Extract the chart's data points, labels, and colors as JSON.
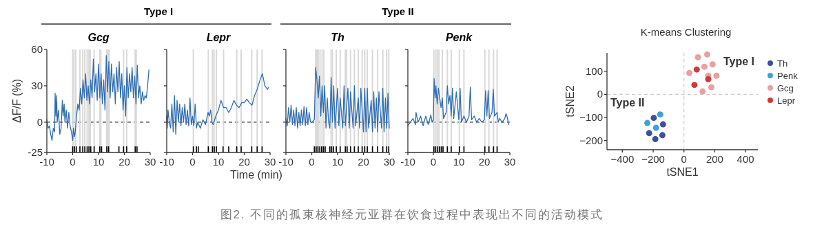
{
  "chart_data": [
    {
      "type": "line",
      "title": "Gcg",
      "ylabel": "ΔF/F (%)",
      "xlim": [
        -10,
        30
      ],
      "xticks": [
        -10,
        0,
        10,
        20,
        30
      ],
      "ylim": [
        -25,
        60
      ],
      "yticks": [
        -25,
        0,
        30,
        60
      ],
      "annotations": [
        "Type I",
        "图2. 不同的孤束核神经元亚群在饮食过程中表现出不同的活动模式"
      ],
      "ref_lines": [
        {
          "axis": "y",
          "value": 0,
          "color": "#333333",
          "line_style": "dashed"
        },
        {
          "axis": "x",
          "value": 0,
          "color": "#d9d9d9"
        },
        {
          "axis": "x",
          "value": 0.5,
          "color": "#d9d9d9"
        },
        {
          "axis": "x",
          "value": 1.2,
          "color": "#d9d9d9"
        },
        {
          "axis": "x",
          "value": 2.8,
          "color": "#d9d9d9"
        },
        {
          "axis": "x",
          "value": 3.9,
          "color": "#d9d9d9"
        },
        {
          "axis": "x",
          "value": 4.7,
          "color": "#d9d9d9"
        },
        {
          "axis": "x",
          "value": 5.6,
          "color": "#d9d9d9"
        },
        {
          "axis": "x",
          "value": 6.3,
          "color": "#d9d9d9"
        },
        {
          "axis": "x",
          "value": 6.8,
          "color": "#d9d9d9"
        },
        {
          "axis": "x",
          "value": 8.3,
          "color": "#d9d9d9"
        },
        {
          "axis": "x",
          "value": 10.5,
          "color": "#d9d9d9"
        },
        {
          "axis": "x",
          "value": 10.9,
          "color": "#d9d9d9"
        },
        {
          "axis": "x",
          "value": 13.2,
          "color": "#d9d9d9"
        },
        {
          "axis": "x",
          "value": 13.7,
          "color": "#d9d9d9"
        },
        {
          "axis": "x",
          "value": 14.1,
          "color": "#d9d9d9"
        },
        {
          "axis": "x",
          "value": 19.7,
          "color": "#d9d9d9"
        },
        {
          "axis": "x",
          "value": 20.9,
          "color": "#d9d9d9"
        },
        {
          "axis": "x",
          "value": 24.2,
          "color": "#d9d9d9"
        },
        {
          "axis": "x",
          "value": 24.6,
          "color": "#d9d9d9"
        }
      ],
      "series": [
        {
          "color": "#2e6db4",
          "x": [
            -10,
            -9.5,
            -9,
            -8.5,
            -8,
            -7.5,
            -7,
            -6.8,
            -6.5,
            -6.2,
            -6,
            -5.5,
            -5,
            -4.5,
            -4,
            -3.7,
            -3.3,
            -3,
            -2.5,
            -2,
            -1.5,
            -1,
            -0.5,
            0,
            0.3,
            0.7,
            1,
            1.5,
            2,
            2.5,
            3,
            3.5,
            4,
            4.5,
            5,
            5.5,
            6,
            6.5,
            7,
            7.5,
            8,
            8.5,
            9,
            9.5,
            10,
            10.5,
            11,
            11.5,
            12,
            12.5,
            13,
            13.5,
            14,
            14.5,
            15,
            15.5,
            16,
            16.5,
            17,
            17.5,
            18,
            18.5,
            19,
            19.5,
            20,
            20.5,
            21,
            21.5,
            22,
            22.5,
            23,
            23.5,
            24,
            24.5,
            25,
            25.5,
            26,
            26.5,
            27,
            27.5,
            28,
            28.5,
            29,
            29.5
          ],
          "values": [
            2,
            -5,
            -3,
            -10,
            -15,
            -5,
            -8,
            24,
            5,
            22,
            0,
            10,
            -10,
            -5,
            18,
            5,
            15,
            0,
            10,
            -5,
            8,
            -3,
            -8,
            -15,
            -5,
            -12,
            -8,
            5,
            15,
            10,
            28,
            15,
            35,
            20,
            40,
            18,
            30,
            15,
            35,
            20,
            52,
            25,
            40,
            18,
            48,
            20,
            40,
            15,
            35,
            10,
            55,
            25,
            50,
            20,
            48,
            25,
            40,
            15,
            45,
            25,
            50,
            20,
            40,
            10,
            30,
            5,
            45,
            20,
            40,
            25,
            45,
            20,
            38,
            15,
            47,
            20,
            30,
            15,
            25,
            18,
            22,
            20,
            30,
            43
          ]
        },
        {
          "type": "bar",
          "color": "#000000",
          "x": [
            0,
            0.7,
            1.4,
            2.8,
            3.9,
            4.7,
            5.6,
            6.3,
            7,
            8.3,
            10.5,
            11.2,
            13.2,
            13.9,
            17.9,
            19.7,
            20.9,
            24.2,
            24.9
          ],
          "base": [
            -25,
            -25,
            -25,
            -25,
            -25,
            -25,
            -25,
            -25,
            -25,
            -25,
            -25,
            -25,
            -25,
            -25,
            -25,
            -25,
            -25,
            -25,
            -25
          ],
          "values": [
            5,
            5,
            5,
            5,
            5,
            5,
            5,
            5,
            5,
            5,
            5,
            5,
            5,
            5,
            5,
            5,
            5,
            5,
            5
          ]
        }
      ]
    },
    {
      "type": "line",
      "title": "Lepr",
      "xlabel": "Time (min)",
      "xlim": [
        -10,
        30
      ],
      "xticks": [
        -10,
        0,
        10,
        20,
        30
      ],
      "ylim": [
        -25,
        60
      ],
      "yticks": [
        -25,
        0,
        30,
        60
      ],
      "tick_labels": "x",
      "ref_lines": [
        {
          "axis": "y",
          "value": 0,
          "color": "#333333",
          "line_style": "dashed"
        },
        {
          "axis": "x",
          "value": 0.3,
          "color": "#d9d9d9"
        },
        {
          "axis": "x",
          "value": 6.1,
          "color": "#d9d9d9"
        },
        {
          "axis": "x",
          "value": 7.7,
          "color": "#d9d9d9"
        },
        {
          "axis": "x",
          "value": 8.3,
          "color": "#d9d9d9"
        },
        {
          "axis": "x",
          "value": 9.2,
          "color": "#d9d9d9"
        },
        {
          "axis": "x",
          "value": 12,
          "color": "#d9d9d9"
        },
        {
          "axis": "x",
          "value": 17.1,
          "color": "#d9d9d9"
        },
        {
          "axis": "x",
          "value": 18.8,
          "color": "#d9d9d9"
        },
        {
          "axis": "x",
          "value": 22.9,
          "color": "#d9d9d9"
        },
        {
          "axis": "x",
          "value": 25,
          "color": "#d9d9d9"
        },
        {
          "axis": "x",
          "value": 26.9,
          "color": "#d9d9d9"
        }
      ],
      "series": [
        {
          "color": "#2e6db4",
          "x": [
            -10,
            -9.8,
            -9.5,
            -9,
            -8.5,
            -8,
            -7.5,
            -7,
            -6.5,
            -6,
            -5.5,
            -5,
            -4.5,
            -4,
            -3.5,
            -3,
            -2.5,
            -2,
            -1.5,
            -1,
            -0.5,
            0,
            0.5,
            1,
            1.5,
            2,
            3,
            4,
            5,
            6,
            6.5,
            7,
            7.5,
            8,
            9,
            10,
            11,
            12,
            13,
            14,
            15,
            16,
            17,
            18,
            19,
            20,
            21,
            22,
            23,
            24,
            25,
            26,
            27,
            28,
            29,
            29.5
          ],
          "values": [
            5,
            -5,
            10,
            0,
            -5,
            15,
            -8,
            22,
            -10,
            18,
            0,
            15,
            -3,
            12,
            0,
            15,
            -2,
            10,
            -3,
            20,
            -2,
            5,
            -3,
            15,
            -5,
            0,
            -5,
            2,
            -2,
            8,
            5,
            10,
            0,
            -2,
            5,
            10,
            18,
            12,
            12,
            8,
            12,
            18,
            14,
            12,
            16,
            16,
            19,
            16,
            14,
            22,
            27,
            34,
            40,
            30,
            27,
            29
          ]
        },
        {
          "type": "bar",
          "color": "#000000",
          "x": [
            0.3,
            1.5,
            2.2,
            6.1,
            7.7,
            8.4,
            9.2,
            11.8,
            14,
            17.1,
            18.8,
            22.9,
            25,
            26.9
          ],
          "base": [
            -25,
            -25,
            -25,
            -25,
            -25,
            -25,
            -25,
            -25,
            -25,
            -25,
            -25,
            -25,
            -25,
            -25
          ],
          "values": [
            5,
            5,
            5,
            5,
            5,
            5,
            5,
            5,
            5,
            5,
            5,
            5,
            5,
            5
          ]
        }
      ]
    },
    {
      "type": "line",
      "title": "Th",
      "xlim": [
        -10,
        30
      ],
      "xticks": [
        -10,
        0,
        10,
        20,
        30
      ],
      "ylim": [
        -25,
        60
      ],
      "yticks": [
        -25,
        0,
        30,
        60
      ],
      "tick_labels": "x",
      "annotations": [
        "Type II"
      ],
      "ref_lines": [
        {
          "axis": "y",
          "value": 0,
          "color": "#333333",
          "line_style": "dashed"
        },
        {
          "axis": "x",
          "value": 1.5,
          "color": "#d9d9d9"
        },
        {
          "axis": "x",
          "value": 2,
          "color": "#d9d9d9"
        },
        {
          "axis": "x",
          "value": 2.5,
          "color": "#d9d9d9"
        },
        {
          "axis": "x",
          "value": 3.2,
          "color": "#d9d9d9"
        },
        {
          "axis": "x",
          "value": 4,
          "color": "#d9d9d9"
        },
        {
          "axis": "x",
          "value": 4.7,
          "color": "#d9d9d9"
        },
        {
          "axis": "x",
          "value": 7.5,
          "color": "#d9d9d9"
        },
        {
          "axis": "x",
          "value": 8,
          "color": "#d9d9d9"
        },
        {
          "axis": "x",
          "value": 9.5,
          "color": "#d9d9d9"
        },
        {
          "axis": "x",
          "value": 11,
          "color": "#d9d9d9"
        },
        {
          "axis": "x",
          "value": 13,
          "color": "#d9d9d9"
        },
        {
          "axis": "x",
          "value": 13.5,
          "color": "#d9d9d9"
        },
        {
          "axis": "x",
          "value": 15,
          "color": "#d9d9d9"
        },
        {
          "axis": "x",
          "value": 16.5,
          "color": "#d9d9d9"
        },
        {
          "axis": "x",
          "value": 18,
          "color": "#d9d9d9"
        },
        {
          "axis": "x",
          "value": 19.5,
          "color": "#d9d9d9"
        },
        {
          "axis": "x",
          "value": 20.5,
          "color": "#d9d9d9"
        },
        {
          "axis": "x",
          "value": 21.5,
          "color": "#d9d9d9"
        },
        {
          "axis": "x",
          "value": 23.5,
          "color": "#d9d9d9"
        },
        {
          "axis": "x",
          "value": 25.5,
          "color": "#d9d9d9"
        },
        {
          "axis": "x",
          "value": 27.5,
          "color": "#d9d9d9"
        },
        {
          "axis": "x",
          "value": 29,
          "color": "#d9d9d9"
        },
        {
          "axis": "x",
          "value": 29.8,
          "color": "#d9d9d9"
        }
      ],
      "series": [
        {
          "color": "#2e6db4",
          "x": [
            -10,
            -9.5,
            -9,
            -8.5,
            -8,
            -7.5,
            -7,
            -6.5,
            -6,
            -5.5,
            -5,
            -4.5,
            -4,
            -3.5,
            -3,
            -2.5,
            -2,
            -1.5,
            -1,
            -0.5,
            0,
            1,
            1.5,
            2,
            2.5,
            3,
            3.5,
            4,
            4.5,
            5,
            5.5,
            6,
            6.5,
            7,
            7.5,
            8,
            8.5,
            9,
            10,
            10.5,
            11,
            12,
            12.5,
            13,
            14,
            14.5,
            15,
            16,
            16.5,
            17,
            18,
            18.5,
            19,
            20,
            20.5,
            21,
            21.5,
            22,
            23,
            23.5,
            24,
            24.5,
            25,
            25.5,
            26,
            27,
            27.5,
            28,
            28.5,
            29,
            29.5,
            30
          ],
          "values": [
            3,
            -3,
            12,
            0,
            14,
            -2,
            10,
            -3,
            12,
            -5,
            8,
            -3,
            10,
            -2,
            13,
            -3,
            12,
            -2,
            8,
            0,
            0,
            2,
            45,
            35,
            20,
            38,
            5,
            30,
            8,
            30,
            -5,
            20,
            0,
            -5,
            37,
            0,
            30,
            -5,
            28,
            -3,
            20,
            -5,
            30,
            -3,
            28,
            -5,
            25,
            -5,
            30,
            -3,
            20,
            -5,
            28,
            -8,
            28,
            -8,
            28,
            -5,
            18,
            -8,
            25,
            -5,
            20,
            -8,
            25,
            -5,
            28,
            -8,
            20,
            -5,
            24,
            -5
          ]
        },
        {
          "type": "bar",
          "color": "#000000",
          "x": [
            1,
            1.7,
            2.4,
            3.1,
            3.8,
            4.5,
            5.2,
            7,
            7.7,
            8.4,
            9.5,
            11,
            13,
            13.7,
            15,
            16.5,
            18,
            19.5,
            20.5,
            21.5,
            23.5,
            25.5,
            27.5,
            29,
            29.8
          ],
          "base": [
            -25,
            -25,
            -25,
            -25,
            -25,
            -25,
            -25,
            -25,
            -25,
            -25,
            -25,
            -25,
            -25,
            -25,
            -25,
            -25,
            -25,
            -25,
            -25,
            -25,
            -25,
            -25,
            -25,
            -25,
            -25
          ],
          "values": [
            5,
            5,
            5,
            5,
            5,
            5,
            5,
            5,
            5,
            5,
            5,
            5,
            5,
            5,
            5,
            5,
            5,
            5,
            5,
            5,
            5,
            5,
            5,
            5,
            5
          ]
        }
      ]
    },
    {
      "type": "line",
      "title": "Penk",
      "xlim": [
        -10,
        30
      ],
      "xticks": [
        -10,
        0,
        10,
        20,
        30
      ],
      "ylim": [
        -25,
        60
      ],
      "yticks": [
        -25,
        0,
        30,
        60
      ],
      "tick_labels": "x",
      "ref_lines": [
        {
          "axis": "y",
          "value": 0,
          "color": "#333333",
          "line_style": "dashed"
        },
        {
          "axis": "x",
          "value": 0.2,
          "color": "#d9d9d9"
        },
        {
          "axis": "x",
          "value": 1,
          "color": "#d9d9d9"
        },
        {
          "axis": "x",
          "value": 1.7,
          "color": "#d9d9d9"
        },
        {
          "axis": "x",
          "value": 2.2,
          "color": "#d9d9d9"
        },
        {
          "axis": "x",
          "value": 3.5,
          "color": "#d9d9d9"
        },
        {
          "axis": "x",
          "value": 5.5,
          "color": "#d9d9d9"
        },
        {
          "axis": "x",
          "value": 7,
          "color": "#d9d9d9"
        },
        {
          "axis": "x",
          "value": 10.2,
          "color": "#d9d9d9"
        },
        {
          "axis": "x",
          "value": 12,
          "color": "#d9d9d9"
        },
        {
          "axis": "x",
          "value": 20.2,
          "color": "#d9d9d9"
        },
        {
          "axis": "x",
          "value": 21.8,
          "color": "#d9d9d9"
        },
        {
          "axis": "x",
          "value": 23.6,
          "color": "#d9d9d9"
        },
        {
          "axis": "x",
          "value": 25,
          "color": "#d9d9d9"
        }
      ],
      "series": [
        {
          "color": "#2e6db4",
          "x": [
            -10,
            -9,
            -8,
            -7,
            -6.8,
            -6,
            -5,
            -4,
            -3,
            -2,
            -1,
            -0.5,
            0,
            0.3,
            0.7,
            1,
            1.5,
            2,
            2.5,
            3,
            3.5,
            4,
            5,
            5.5,
            6,
            6.5,
            7,
            7.5,
            8,
            9,
            10,
            10.5,
            11,
            12,
            13,
            14,
            14.5,
            15,
            16,
            17,
            18,
            19,
            20,
            20.5,
            21,
            21.5,
            22,
            23,
            23.5,
            24,
            25,
            25.5,
            26,
            27,
            28,
            28.5,
            29,
            29.5
          ],
          "values": [
            -3,
            0,
            3,
            -2,
            8,
            0,
            5,
            -3,
            5,
            -2,
            6,
            0,
            2,
            36,
            20,
            30,
            15,
            28,
            20,
            12,
            20,
            3,
            8,
            30,
            15,
            22,
            5,
            28,
            3,
            25,
            2,
            28,
            0,
            5,
            0,
            5,
            29,
            2,
            5,
            0,
            3,
            0,
            2,
            26,
            5,
            26,
            3,
            8,
            27,
            5,
            8,
            0,
            3,
            0,
            3,
            7,
            4,
            -2
          ]
        },
        {
          "type": "bar",
          "color": "#000000",
          "x": [
            0.2,
            0.9,
            1.7,
            2.4,
            3.1,
            3.8,
            5.5,
            7,
            10.2,
            12,
            20.2,
            21.8,
            23.6,
            25
          ],
          "base": [
            -25,
            -25,
            -25,
            -25,
            -25,
            -25,
            -25,
            -25,
            -25,
            -25,
            -25,
            -25,
            -25,
            -25
          ],
          "values": [
            5,
            5,
            5,
            5,
            5,
            5,
            5,
            5,
            5,
            5,
            5,
            5,
            5,
            5
          ]
        }
      ]
    },
    {
      "type": "scatter",
      "title": "K-means Clustering",
      "xlabel": "tSNE1",
      "ylabel": "tSNE2",
      "xlim": [
        -500,
        480
      ],
      "xticks": [
        {
          "value": -400,
          "label": "−400"
        },
        {
          "value": -200,
          "label": "−200"
        },
        0,
        200,
        400
      ],
      "ylim": [
        -240,
        180
      ],
      "yticks": [
        {
          "value": -200,
          "label": "−200"
        },
        {
          "value": -100,
          "label": "−100"
        },
        0,
        100
      ],
      "marker": "circle",
      "legend": "right",
      "ref_lines": [
        {
          "axis": "x",
          "value": 0,
          "color": "#cccccc",
          "line_style": "dashed"
        },
        {
          "axis": "y",
          "value": 0,
          "color": "#cccccc",
          "line_style": "dashed"
        }
      ],
      "annotations": [
        "Type I",
        "Type II"
      ],
      "series": [
        {
          "name": "Th",
          "color": "#3f4f9f",
          "x": [
            -196,
            -136,
            -226,
            -140,
            -186
          ],
          "values": [
            -102,
            -130,
            -168,
            -177,
            -194
          ]
        },
        {
          "name": "Penk",
          "color": "#3fa0d8",
          "x": [
            -154,
            -238,
            -181
          ],
          "values": [
            -87,
            -124,
            -145
          ]
        },
        {
          "name": "Gcg",
          "color": "#e8a0a0",
          "x": [
            91,
            151,
            186,
            133,
            35,
            158,
            211,
            178,
            121
          ],
          "values": [
            161,
            173,
            130,
            120,
            93,
            81,
            81,
            31,
            13
          ]
        },
        {
          "name": "Lepr",
          "color": "#d03a3a",
          "x": [
            83,
            158,
            68
          ],
          "values": [
            108,
            66,
            41
          ]
        }
      ]
    }
  ]
}
